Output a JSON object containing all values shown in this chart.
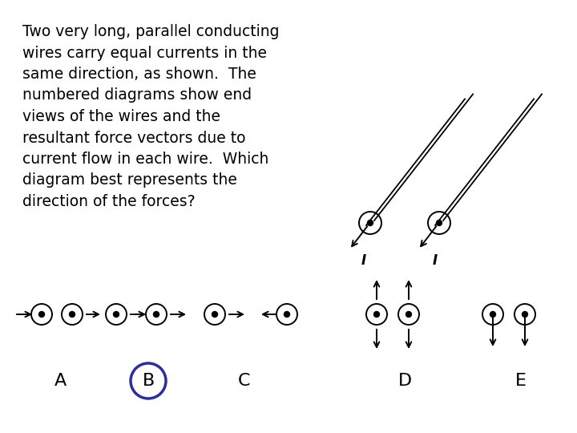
{
  "bg_color": "#ffffff",
  "text_color": "#000000",
  "question_text": "Two very long, parallel conducting\nwires carry equal currents in the\nsame direction, as shown.  The\nnumbered diagrams show end\nviews of the wires and the\nresultant force vectors due to\ncurrent flow in each wire.  Which\ndiagram best represents the\ndirection of the forces?",
  "question_fontsize": 13.5,
  "answer_circle_color": "#2B2E9C",
  "labels": [
    "A",
    "B",
    "C",
    "D",
    "E"
  ],
  "label_fontsize": 16,
  "diagram_label_fontsize": 13,
  "wire_label_fontsize": 12
}
